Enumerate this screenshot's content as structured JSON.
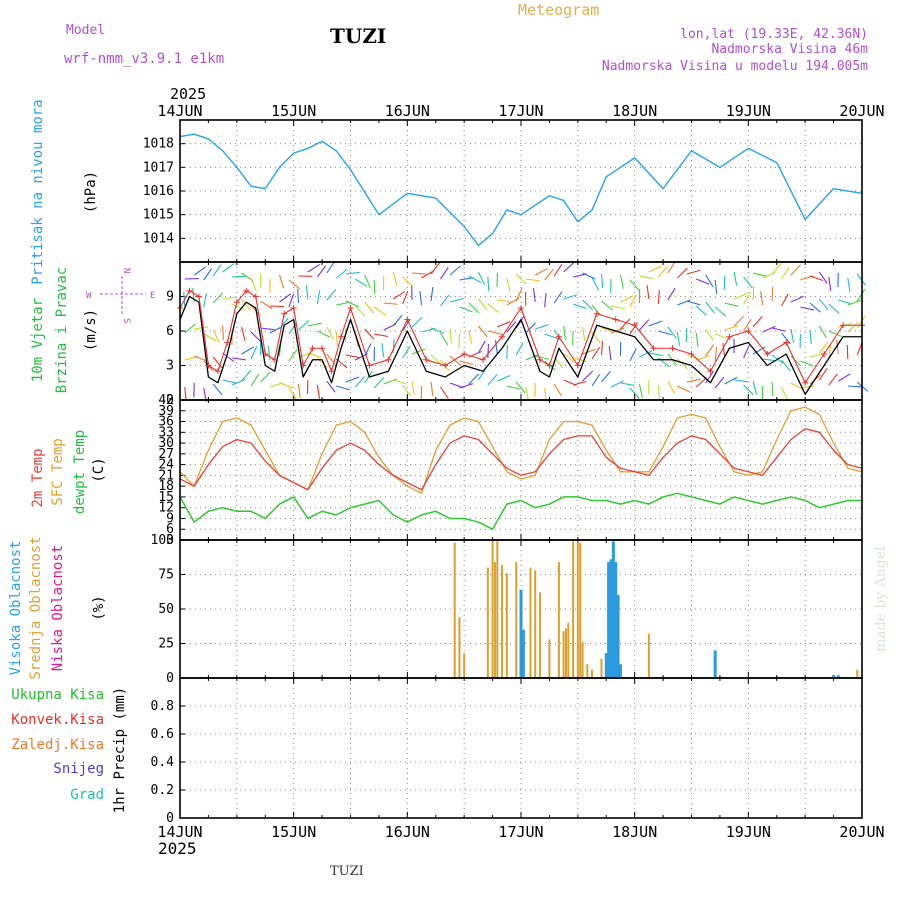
{
  "header": {
    "model_label": "Model",
    "model_value": "wrf-nmm_v3.9.1  e1km",
    "station": "TUZI",
    "title": "Meteogram",
    "lonlat": "lon,lat (19.33E, 42.36N)",
    "elevation": "Nadmorska Visina 46m",
    "elevation_model": "Nadmorska Visina u modelu 194.005m"
  },
  "time_axis": {
    "year": "2025",
    "labels": [
      "14JUN",
      "15JUN",
      "16JUN",
      "17JUN",
      "18JUN",
      "19JUN",
      "20JUN"
    ]
  },
  "footer": {
    "station": "TUZI",
    "watermark": "made by Angel"
  },
  "colors": {
    "pressure": "#29a3e8",
    "wind_speed": "#000000",
    "gust": "#e8302a",
    "temp2m": "#e8403a",
    "sfc_temp": "#e0a030",
    "dewpoint": "#30c830",
    "high_cloud": "#2a9be0",
    "mid_cloud": "#d9a030",
    "low_cloud": "#e01890",
    "precip_total": "#22c02a",
    "precip_conv": "#e8302a",
    "precip_frozen": "#f07828",
    "snow": "#4a3ae0",
    "graupel": "#20c0b0"
  },
  "panels": {
    "pressure": {
      "title": "Pritisak na nivou mora",
      "unit": "(hPa)"
    },
    "wind": {
      "title1": "10m Vjetar",
      "title2": "Brzina i Pravac",
      "unit": "(m/s)",
      "compass_w": "W",
      "compass_e": "E",
      "compass_n": "N",
      "compass_s": "S"
    },
    "temp": {
      "t2m": "2m Temp",
      "sfc": "SFC Temp",
      "dew": "dewpt Temp",
      "unit": "(C)"
    },
    "cloud": {
      "high": "Visoka Oblacnost",
      "mid": "Srednja Oblacnost",
      "low": "Niska Oblacnost",
      "unit": "(%)"
    },
    "precip": {
      "total": "Ukupna Kisa",
      "conv": "Konvek.Kisa",
      "frozen": "Zaledj.Kisa",
      "snow": "Snijeg",
      "grad": "Grad",
      "unit": "1hr Precip (mm)"
    }
  },
  "chart_data": [
    {
      "type": "line",
      "panel": "pressure",
      "title": "Pritisak na nivou mora",
      "ylabel": "(hPa)",
      "ylim": [
        1013.0,
        1019.0
      ],
      "yticks": [
        "1014",
        "1015",
        "1016",
        "1017",
        "1018"
      ],
      "grid": true,
      "x_hours": [
        0,
        3,
        6,
        9,
        12,
        15,
        18,
        21,
        24,
        27,
        30,
        33,
        36,
        42,
        48,
        54,
        60,
        63,
        66,
        69,
        72,
        75,
        78,
        81,
        84,
        87,
        90,
        96,
        102,
        108,
        114,
        120,
        126,
        132,
        138,
        144
      ],
      "series": [
        {
          "values": [
            1018.3,
            1018.4,
            1018.2,
            1017.7,
            1017.0,
            1016.2,
            1016.1,
            1017.0,
            1017.6,
            1017.8,
            1018.1,
            1017.7,
            1016.9,
            1015.0,
            1015.9,
            1015.7,
            1014.5,
            1013.7,
            1014.2,
            1015.2,
            1015.0,
            1015.4,
            1015.8,
            1015.6,
            1014.7,
            1015.2,
            1016.6,
            1017.4,
            1016.1,
            1017.7,
            1017.0,
            1017.8,
            1017.2,
            1014.8,
            1016.1,
            1015.9
          ]
        }
      ]
    },
    {
      "type": "line",
      "panel": "wind",
      "title": "10m Vjetar Brzina i Pravac",
      "ylabel": "(m/s)",
      "ylim": [
        0,
        12
      ],
      "yticks": [
        "0",
        "3",
        "6",
        "9"
      ],
      "grid": true,
      "x_hours": [
        0,
        2,
        4,
        6,
        8,
        10,
        12,
        14,
        16,
        18,
        20,
        22,
        24,
        26,
        28,
        30,
        32,
        34,
        36,
        40,
        44,
        48,
        52,
        56,
        60,
        64,
        68,
        72,
        76,
        78,
        80,
        84,
        88,
        92,
        96,
        100,
        104,
        108,
        112,
        116,
        120,
        124,
        128,
        132,
        136,
        140,
        144
      ],
      "series": [
        {
          "values": [
            7.0,
            9.0,
            8.5,
            2.0,
            1.5,
            4.0,
            7.5,
            8.5,
            8.0,
            3.0,
            2.5,
            6.5,
            7.0,
            2.0,
            3.5,
            3.5,
            1.5,
            4.5,
            7.0,
            2.0,
            2.5,
            6.0,
            2.5,
            2.0,
            3.0,
            2.5,
            4.5,
            7.0,
            2.5,
            2.0,
            4.5,
            2.0,
            6.5,
            6.0,
            5.5,
            3.5,
            3.5,
            3.0,
            1.5,
            4.5,
            5.0,
            3.0,
            4.0,
            0.5,
            3.0,
            5.5,
            5.5
          ]
        },
        {
          "values": [
            8.0,
            9.5,
            9.0,
            3.0,
            2.5,
            5.0,
            8.5,
            9.5,
            9.0,
            4.0,
            3.5,
            7.5,
            8.0,
            3.0,
            4.5,
            4.5,
            2.5,
            5.5,
            8.0,
            3.0,
            3.5,
            7.0,
            3.5,
            3.0,
            4.0,
            3.5,
            5.5,
            8.0,
            3.5,
            3.0,
            5.5,
            3.0,
            7.5,
            7.0,
            6.5,
            4.5,
            4.5,
            4.0,
            2.5,
            5.5,
            6.0,
            4.0,
            5.0,
            1.5,
            4.0,
            6.5,
            6.5
          ]
        }
      ]
    },
    {
      "type": "line",
      "panel": "temp",
      "title": "Temp",
      "ylabel": "(C)",
      "ylim": [
        3,
        42
      ],
      "yticks": [
        "3",
        "6",
        "9",
        "12",
        "15",
        "18",
        "21",
        "24",
        "27",
        "30",
        "33",
        "36",
        "39",
        "42"
      ],
      "grid": true,
      "x_hours": [
        0,
        3,
        6,
        9,
        12,
        15,
        18,
        21,
        24,
        27,
        30,
        33,
        36,
        39,
        42,
        45,
        48,
        51,
        54,
        57,
        60,
        63,
        66,
        69,
        72,
        75,
        78,
        81,
        84,
        87,
        90,
        93,
        96,
        99,
        102,
        105,
        108,
        111,
        114,
        117,
        120,
        123,
        126,
        129,
        132,
        135,
        138,
        141,
        144
      ],
      "series": [
        {
          "values": [
            20,
            18,
            24,
            29,
            31,
            30,
            25,
            21,
            19,
            17,
            23,
            28,
            30,
            28,
            24,
            21,
            19,
            17,
            24,
            30,
            32,
            31,
            27,
            23,
            21,
            22,
            27,
            31,
            32,
            32,
            26,
            23,
            22,
            21,
            26,
            30,
            32,
            31,
            27,
            23,
            22,
            21,
            26,
            31,
            34,
            33,
            28,
            24,
            23
          ]
        },
        {
          "values": [
            22,
            18,
            28,
            36,
            37,
            35,
            28,
            21,
            19,
            17,
            27,
            35,
            36,
            33,
            26,
            21,
            18,
            16,
            28,
            35,
            37,
            36,
            29,
            22,
            20,
            21,
            31,
            36,
            36,
            35,
            28,
            22,
            22,
            22,
            29,
            37,
            38,
            37,
            29,
            22,
            21,
            22,
            31,
            39,
            40,
            38,
            30,
            23,
            22
          ]
        },
        {
          "values": [
            15,
            8,
            11,
            12,
            11,
            11,
            9,
            13,
            15,
            9,
            11,
            10,
            12,
            13,
            14,
            10,
            8,
            10,
            11,
            9,
            9,
            8,
            6,
            13,
            14,
            12,
            13,
            15,
            15,
            14,
            14,
            13,
            14,
            13,
            15,
            16,
            15,
            14,
            13,
            15,
            14,
            13,
            14,
            15,
            14,
            12,
            13,
            14,
            14
          ]
        }
      ]
    },
    {
      "type": "bar",
      "panel": "cloud",
      "title": "Oblacnost",
      "ylabel": "(%)",
      "ylim": [
        0,
        100
      ],
      "yticks": [
        "0",
        "25",
        "50",
        "75",
        "100"
      ],
      "grid": true,
      "series": [
        {
          "name": "Visoka Oblacnost",
          "x_hours": [
            72,
            72.5,
            90,
            90.5,
            91,
            91.5,
            92,
            92.5,
            93,
            93.5,
            94,
            113,
            138,
            139
          ],
          "values": [
            64,
            35,
            18,
            84,
            86,
            99,
            84,
            60,
            10,
            0,
            0,
            20,
            2,
            2
          ]
        },
        {
          "name": "Srednja Oblacnost",
          "x_hours": [
            58,
            59,
            60,
            65,
            66,
            66.5,
            67,
            68,
            69,
            71,
            74,
            75,
            76,
            78,
            80,
            81,
            81.5,
            82,
            83,
            84,
            84.5,
            85,
            86,
            87,
            89,
            99,
            143
          ],
          "values": [
            98,
            44,
            18,
            80,
            99,
            84,
            99,
            82,
            76,
            84,
            80,
            78,
            62,
            28,
            84,
            34,
            36,
            40,
            99,
            99,
            98,
            26,
            10,
            6,
            14,
            32,
            6
          ]
        },
        {
          "name": "Niska Oblacnost",
          "x_hours": [],
          "values": []
        }
      ]
    },
    {
      "type": "bar",
      "panel": "precip",
      "title": "1hr Precip",
      "ylabel": "1hr Precip (mm)",
      "ylim": [
        0,
        1.0
      ],
      "yticks": [
        "0",
        "0.2",
        "0.4",
        "0.6",
        "0.8"
      ],
      "grid": true,
      "series": [
        {
          "name": "Ukupna Kisa",
          "values": []
        },
        {
          "name": "Konvek.Kisa",
          "values": []
        },
        {
          "name": "Zaledj.Kisa",
          "values": []
        },
        {
          "name": "Snijeg",
          "values": []
        },
        {
          "name": "Grad",
          "values": []
        }
      ]
    }
  ]
}
